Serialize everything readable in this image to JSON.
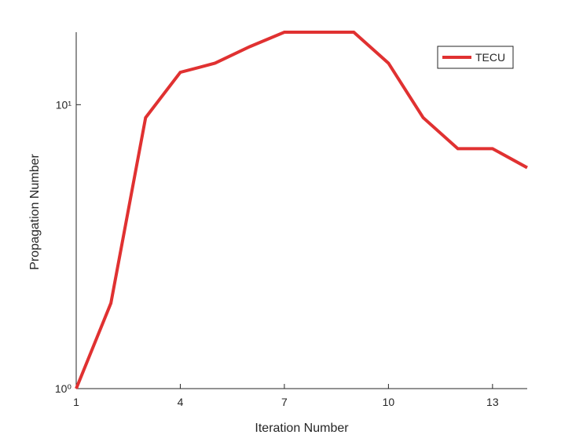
{
  "chart_data": {
    "type": "line",
    "x": [
      1,
      2,
      3,
      4,
      5,
      6,
      7,
      8,
      9,
      10,
      11,
      12,
      13,
      14
    ],
    "series": [
      {
        "name": "TECU",
        "color": "#e03131",
        "values": [
          1,
          2,
          9,
          13,
          14,
          16,
          18,
          18,
          18,
          14,
          9,
          7,
          7,
          6
        ]
      }
    ],
    "xlabel": "Iteration Number",
    "ylabel": "Propagation Number",
    "xlim": [
      1,
      14
    ],
    "xticks": [
      1,
      4,
      7,
      10,
      13
    ],
    "ylim": [
      1,
      18
    ],
    "yticks": [
      {
        "value": 1,
        "label": "10⁰"
      },
      {
        "value": 10,
        "label": "10¹"
      }
    ],
    "yscale": "log",
    "legend": "northeast"
  }
}
